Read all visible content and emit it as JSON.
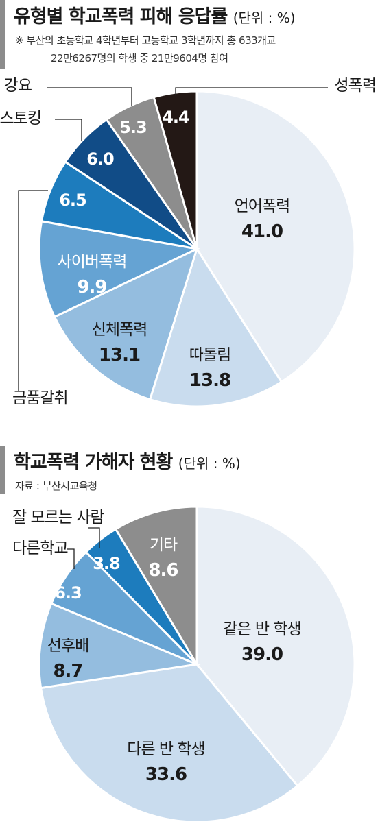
{
  "chart_data": [
    {
      "type": "pie",
      "title": "유형별 학교폭력 피해 응답률",
      "unit": "(단위 : %)",
      "notes": [
        "※ 부산의 초등학교 4학년부터 고등학교 3학년까지 총 633개교",
        "22만6267명의 학생 중 21만9604명 참여"
      ],
      "slices": [
        {
          "label": "언어폭력",
          "value": 41.0,
          "display": "41.0",
          "color": "#e8eef5",
          "text_color": "#1a1a1a",
          "label_inside": true
        },
        {
          "label": "따돌림",
          "value": 13.8,
          "display": "13.8",
          "color": "#c9dcee",
          "text_color": "#1a1a1a",
          "label_inside": true
        },
        {
          "label": "신체폭력",
          "value": 13.1,
          "display": "13.1",
          "color": "#94bddf",
          "text_color": "#1a1a1a",
          "label_inside": true
        },
        {
          "label": "사이버폭력",
          "value": 9.9,
          "display": "9.9",
          "color": "#65a3d3",
          "text_color": "#ffffff",
          "label_inside": true
        },
        {
          "label": "금품갈취",
          "value": 6.5,
          "display": "6.5",
          "color": "#1d7cbd",
          "text_color": "#ffffff",
          "label_inside": false
        },
        {
          "label": "스토킹",
          "value": 6.0,
          "display": "6.0",
          "color": "#114c87",
          "text_color": "#ffffff",
          "label_inside": false
        },
        {
          "label": "강요",
          "value": 5.3,
          "display": "5.3",
          "color": "#8d8d8d",
          "text_color": "#ffffff",
          "label_inside": false
        },
        {
          "label": "성폭력",
          "value": 4.4,
          "display": "4.4",
          "color": "#231815",
          "text_color": "#ffffff",
          "label_inside": false
        }
      ]
    },
    {
      "type": "pie",
      "title": "학교폭력 가해자 현황",
      "unit": "(단위 : %)",
      "source": "자료 : 부산시교육청",
      "slices": [
        {
          "label": "같은 반 학생",
          "value": 39.0,
          "display": "39.0",
          "color": "#e8eef5",
          "text_color": "#1a1a1a",
          "label_inside": true
        },
        {
          "label": "다른 반 학생",
          "value": 33.6,
          "display": "33.6",
          "color": "#c9dcee",
          "text_color": "#1a1a1a",
          "label_inside": true
        },
        {
          "label": "선후배",
          "value": 8.7,
          "display": "8.7",
          "color": "#94bddf",
          "text_color": "#1a1a1a",
          "label_inside": true
        },
        {
          "label": "다른학교",
          "value": 6.3,
          "display": "6.3",
          "color": "#65a3d3",
          "text_color": "#ffffff",
          "label_inside": false
        },
        {
          "label": "잘 모르는 사람",
          "value": 3.8,
          "display": "3.8",
          "color": "#1d7cbd",
          "text_color": "#ffffff",
          "label_inside": false
        },
        {
          "label": "기타",
          "value": 8.6,
          "display": "8.6",
          "color": "#8d8d8d",
          "text_color": "#ffffff",
          "label_inside": true
        }
      ]
    }
  ]
}
